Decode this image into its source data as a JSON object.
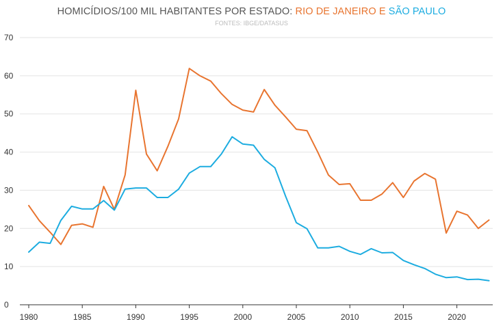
{
  "chart_data": {
    "type": "line",
    "title": {
      "prefix": "HOMICÍDIOS/100 MIL HABITANTES POR ESTADO: ",
      "series_a": "RIO DE JANEIRO",
      "joiner": " E ",
      "series_b": "SÃO PAULO"
    },
    "subtitle": "FONTES: IBGE/DATASUS",
    "xlim": [
      1980,
      2023
    ],
    "ylim": [
      0,
      70
    ],
    "x_ticks": [
      1980,
      1985,
      1990,
      1995,
      2000,
      2005,
      2010,
      2015,
      2020
    ],
    "y_ticks": [
      0,
      10,
      20,
      30,
      40,
      50,
      60,
      70
    ],
    "grid": "horizontal",
    "x": [
      1980,
      1981,
      1982,
      1983,
      1984,
      1985,
      1986,
      1987,
      1988,
      1989,
      1990,
      1991,
      1992,
      1993,
      1994,
      1995,
      1996,
      1997,
      1998,
      1999,
      2000,
      2001,
      2002,
      2003,
      2004,
      2005,
      2006,
      2007,
      2008,
      2009,
      2010,
      2011,
      2012,
      2013,
      2014,
      2015,
      2016,
      2017,
      2018,
      2019,
      2020,
      2021,
      2022,
      2023
    ],
    "series": [
      {
        "name": "RIO DE JANEIRO",
        "color": "#e8742f",
        "values": [
          26,
          22,
          19,
          15.8,
          20.8,
          21.2,
          20.3,
          31,
          25,
          34,
          56.2,
          39.5,
          35.1,
          41.5,
          48.7,
          61.9,
          60,
          58.6,
          55.3,
          52.5,
          51,
          50.5,
          56.4,
          52.3,
          49.2,
          46,
          45.6,
          40,
          34,
          31.5,
          31.7,
          27.4,
          27.4,
          29,
          32,
          28.1,
          32.4,
          34.4,
          32.9,
          18.8,
          24.5,
          23.5,
          20,
          22.2
        ]
      },
      {
        "name": "SÃO PAULO",
        "color": "#1cace0",
        "values": [
          13.8,
          16.4,
          16.1,
          22.1,
          25.8,
          25.1,
          25.1,
          27.3,
          24.8,
          30.3,
          30.6,
          30.6,
          28.1,
          28.1,
          30.3,
          34.5,
          36.2,
          36.2,
          39.5,
          44,
          42.1,
          41.8,
          38.1,
          35.9,
          28.4,
          21.5,
          19.9,
          14.9,
          14.9,
          15.3,
          14,
          13.2,
          14.7,
          13.6,
          13.7,
          11.6,
          10.5,
          9.5,
          8,
          7.1,
          7.3,
          6.6,
          6.7,
          6.3
        ]
      }
    ]
  }
}
